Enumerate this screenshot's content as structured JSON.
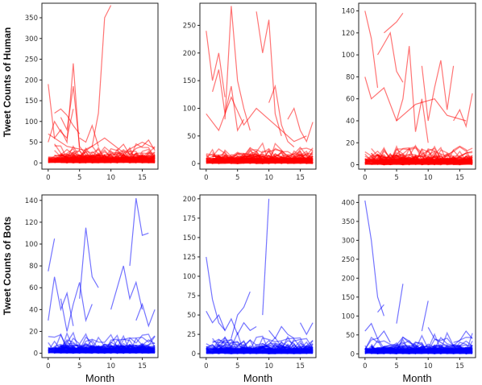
{
  "figure": {
    "row_labels": [
      "Tweet Counts of Human",
      "Tweet Counts of Bots"
    ]
  },
  "chart_data": [
    {
      "type": "line",
      "row": 0,
      "col": 0,
      "color": "#ff0000",
      "ylabel": "Tweet Counts of Human",
      "xlabel": "",
      "xlim": [
        -1,
        17.5
      ],
      "ylim": [
        -15,
        385
      ],
      "xticks": [
        0,
        5,
        10,
        15
      ],
      "yticks": [
        0,
        50,
        100,
        150,
        200,
        250,
        300,
        350
      ],
      "grid": false,
      "series": [
        {
          "x": [
            7,
            8,
            9,
            10
          ],
          "values": [
            40,
            120,
            350,
            380
          ]
        },
        {
          "x": [
            0,
            1,
            2,
            3,
            4,
            5
          ],
          "values": [
            190,
            60,
            80,
            50,
            240,
            30
          ]
        },
        {
          "x": [
            1,
            2,
            3,
            4,
            5
          ],
          "values": [
            120,
            130,
            115,
            90,
            70
          ]
        },
        {
          "x": [
            2,
            3,
            4,
            5,
            6,
            7
          ],
          "values": [
            110,
            80,
            185,
            40,
            20,
            15
          ]
        },
        {
          "x": [
            0,
            1,
            2,
            3,
            4
          ],
          "values": [
            50,
            100,
            75,
            60,
            130
          ]
        },
        {
          "x": [
            5,
            6,
            7,
            8
          ],
          "values": [
            60,
            50,
            90,
            40
          ]
        },
        {
          "x": [
            11,
            12,
            13,
            14,
            15,
            16,
            17
          ],
          "values": [
            30,
            45,
            20,
            35,
            40,
            55,
            30
          ]
        },
        {
          "x": [
            0,
            3,
            6,
            9,
            12,
            15,
            17
          ],
          "values": [
            70,
            40,
            30,
            60,
            25,
            50,
            35
          ]
        }
      ]
    },
    {
      "type": "line",
      "row": 0,
      "col": 1,
      "color": "#ff0000",
      "ylabel": "",
      "xlabel": "",
      "xlim": [
        -1,
        17.5
      ],
      "ylim": [
        -10,
        290
      ],
      "xticks": [
        0,
        5,
        10,
        15
      ],
      "yticks": [
        0,
        50,
        100,
        150,
        200,
        250
      ],
      "grid": false,
      "series": [
        {
          "x": [
            3,
            4,
            5,
            6,
            7
          ],
          "values": [
            80,
            285,
            150,
            100,
            60
          ]
        },
        {
          "x": [
            8,
            9,
            10,
            11,
            12
          ],
          "values": [
            275,
            200,
            260,
            90,
            50
          ]
        },
        {
          "x": [
            0,
            1,
            2,
            3
          ],
          "values": [
            240,
            150,
            200,
            120
          ]
        },
        {
          "x": [
            1,
            2,
            3,
            4,
            5,
            6
          ],
          "values": [
            130,
            170,
            90,
            140,
            60,
            80
          ]
        },
        {
          "x": [
            10,
            11,
            12,
            13,
            14
          ],
          "values": [
            110,
            140,
            70,
            40,
            30
          ]
        },
        {
          "x": [
            13,
            14,
            15,
            16,
            17
          ],
          "values": [
            80,
            100,
            60,
            40,
            75
          ]
        },
        {
          "x": [
            0,
            2,
            4,
            6,
            8,
            10,
            12,
            14,
            16
          ],
          "values": [
            90,
            60,
            120,
            70,
            100,
            80,
            60,
            40,
            50
          ]
        }
      ]
    },
    {
      "type": "line",
      "row": 0,
      "col": 2,
      "color": "#ff0000",
      "ylabel": "",
      "xlabel": "",
      "xlim": [
        -1,
        17.5
      ],
      "ylim": [
        -4,
        147
      ],
      "xticks": [
        0,
        5,
        10,
        15
      ],
      "yticks": [
        0,
        20,
        40,
        60,
        80,
        100,
        120,
        140
      ],
      "grid": false,
      "series": [
        {
          "x": [
            0,
            1,
            2
          ],
          "values": [
            140,
            115,
            70
          ]
        },
        {
          "x": [
            3,
            4,
            5,
            6
          ],
          "values": [
            120,
            125,
            130,
            138
          ]
        },
        {
          "x": [
            2,
            3,
            4,
            5,
            6
          ],
          "values": [
            100,
            110,
            120,
            85,
            75
          ]
        },
        {
          "x": [
            5,
            6,
            7,
            8,
            9,
            10
          ],
          "values": [
            40,
            60,
            108,
            30,
            60,
            20
          ]
        },
        {
          "x": [
            9,
            10,
            11,
            12,
            13,
            14
          ],
          "values": [
            90,
            40,
            70,
            95,
            50,
            90
          ]
        },
        {
          "x": [
            14,
            15,
            16,
            17
          ],
          "values": [
            40,
            50,
            35,
            65
          ]
        },
        {
          "x": [
            0,
            1,
            3,
            5,
            8,
            11,
            13,
            16
          ],
          "values": [
            80,
            60,
            70,
            40,
            55,
            60,
            45,
            40
          ]
        }
      ]
    },
    {
      "type": "line",
      "row": 1,
      "col": 0,
      "color": "#0000ff",
      "ylabel": "Tweet Counts of Bots",
      "xlabel": "Month",
      "xlim": [
        -1,
        17.5
      ],
      "ylim": [
        -4,
        145
      ],
      "xticks": [
        0,
        5,
        10,
        15
      ],
      "yticks": [
        0,
        20,
        40,
        60,
        80,
        100,
        120,
        140
      ],
      "grid": false,
      "series": [
        {
          "x": [
            0,
            1
          ],
          "values": [
            75,
            105
          ]
        },
        {
          "x": [
            13,
            14,
            15,
            16
          ],
          "values": [
            80,
            142,
            108,
            110
          ]
        },
        {
          "x": [
            5,
            6,
            7,
            8
          ],
          "values": [
            50,
            115,
            70,
            60
          ]
        },
        {
          "x": [
            10,
            11,
            12,
            13,
            14,
            15
          ],
          "values": [
            40,
            60,
            80,
            50,
            65,
            40
          ]
        },
        {
          "x": [
            0,
            1,
            2,
            3,
            4
          ],
          "values": [
            30,
            70,
            40,
            55,
            25
          ]
        },
        {
          "x": [
            2,
            3,
            4,
            5,
            6,
            7
          ],
          "values": [
            50,
            20,
            45,
            65,
            30,
            45
          ]
        },
        {
          "x": [
            14,
            15,
            16,
            17
          ],
          "values": [
            30,
            45,
            25,
            40
          ]
        }
      ]
    },
    {
      "type": "line",
      "row": 1,
      "col": 1,
      "color": "#0000ff",
      "ylabel": "",
      "xlabel": "Month",
      "xlim": [
        -1,
        17.5
      ],
      "ylim": [
        -5,
        205
      ],
      "xticks": [
        0,
        5,
        10,
        15
      ],
      "yticks": [
        0,
        25,
        50,
        75,
        100,
        125,
        150,
        175,
        200
      ],
      "grid": false,
      "series": [
        {
          "x": [
            9,
            10
          ],
          "values": [
            50,
            200
          ]
        },
        {
          "x": [
            0,
            1,
            2,
            3
          ],
          "values": [
            125,
            70,
            40,
            30
          ]
        },
        {
          "x": [
            4,
            5,
            6,
            7
          ],
          "values": [
            20,
            50,
            60,
            80
          ]
        },
        {
          "x": [
            0,
            1,
            2,
            3,
            4,
            5,
            6,
            7,
            8
          ],
          "values": [
            55,
            40,
            50,
            30,
            45,
            25,
            40,
            30,
            35
          ]
        },
        {
          "x": [
            10,
            11,
            12,
            13,
            14
          ],
          "values": [
            30,
            20,
            35,
            25,
            20
          ]
        },
        {
          "x": [
            15,
            16,
            17
          ],
          "values": [
            40,
            25,
            40
          ]
        }
      ]
    },
    {
      "type": "line",
      "row": 1,
      "col": 2,
      "color": "#0000ff",
      "ylabel": "",
      "xlabel": "Month",
      "xlim": [
        -1,
        17.5
      ],
      "ylim": [
        -10,
        420
      ],
      "xticks": [
        0,
        5,
        10,
        15
      ],
      "yticks": [
        0,
        50,
        100,
        150,
        200,
        250,
        300,
        350,
        400
      ],
      "grid": false,
      "series": [
        {
          "x": [
            0,
            1,
            2,
            3
          ],
          "values": [
            405,
            300,
            150,
            100
          ]
        },
        {
          "x": [
            2,
            3
          ],
          "values": [
            110,
            130
          ]
        },
        {
          "x": [
            5,
            6
          ],
          "values": [
            80,
            185
          ]
        },
        {
          "x": [
            9,
            10
          ],
          "values": [
            60,
            140
          ]
        },
        {
          "x": [
            0,
            1,
            2,
            3,
            4
          ],
          "values": [
            60,
            80,
            40,
            60,
            30
          ]
        },
        {
          "x": [
            10,
            11,
            12,
            13
          ],
          "values": [
            70,
            40,
            30,
            20
          ]
        },
        {
          "x": [
            14,
            15,
            16,
            17
          ],
          "values": [
            30,
            35,
            60,
            40
          ]
        }
      ]
    }
  ]
}
